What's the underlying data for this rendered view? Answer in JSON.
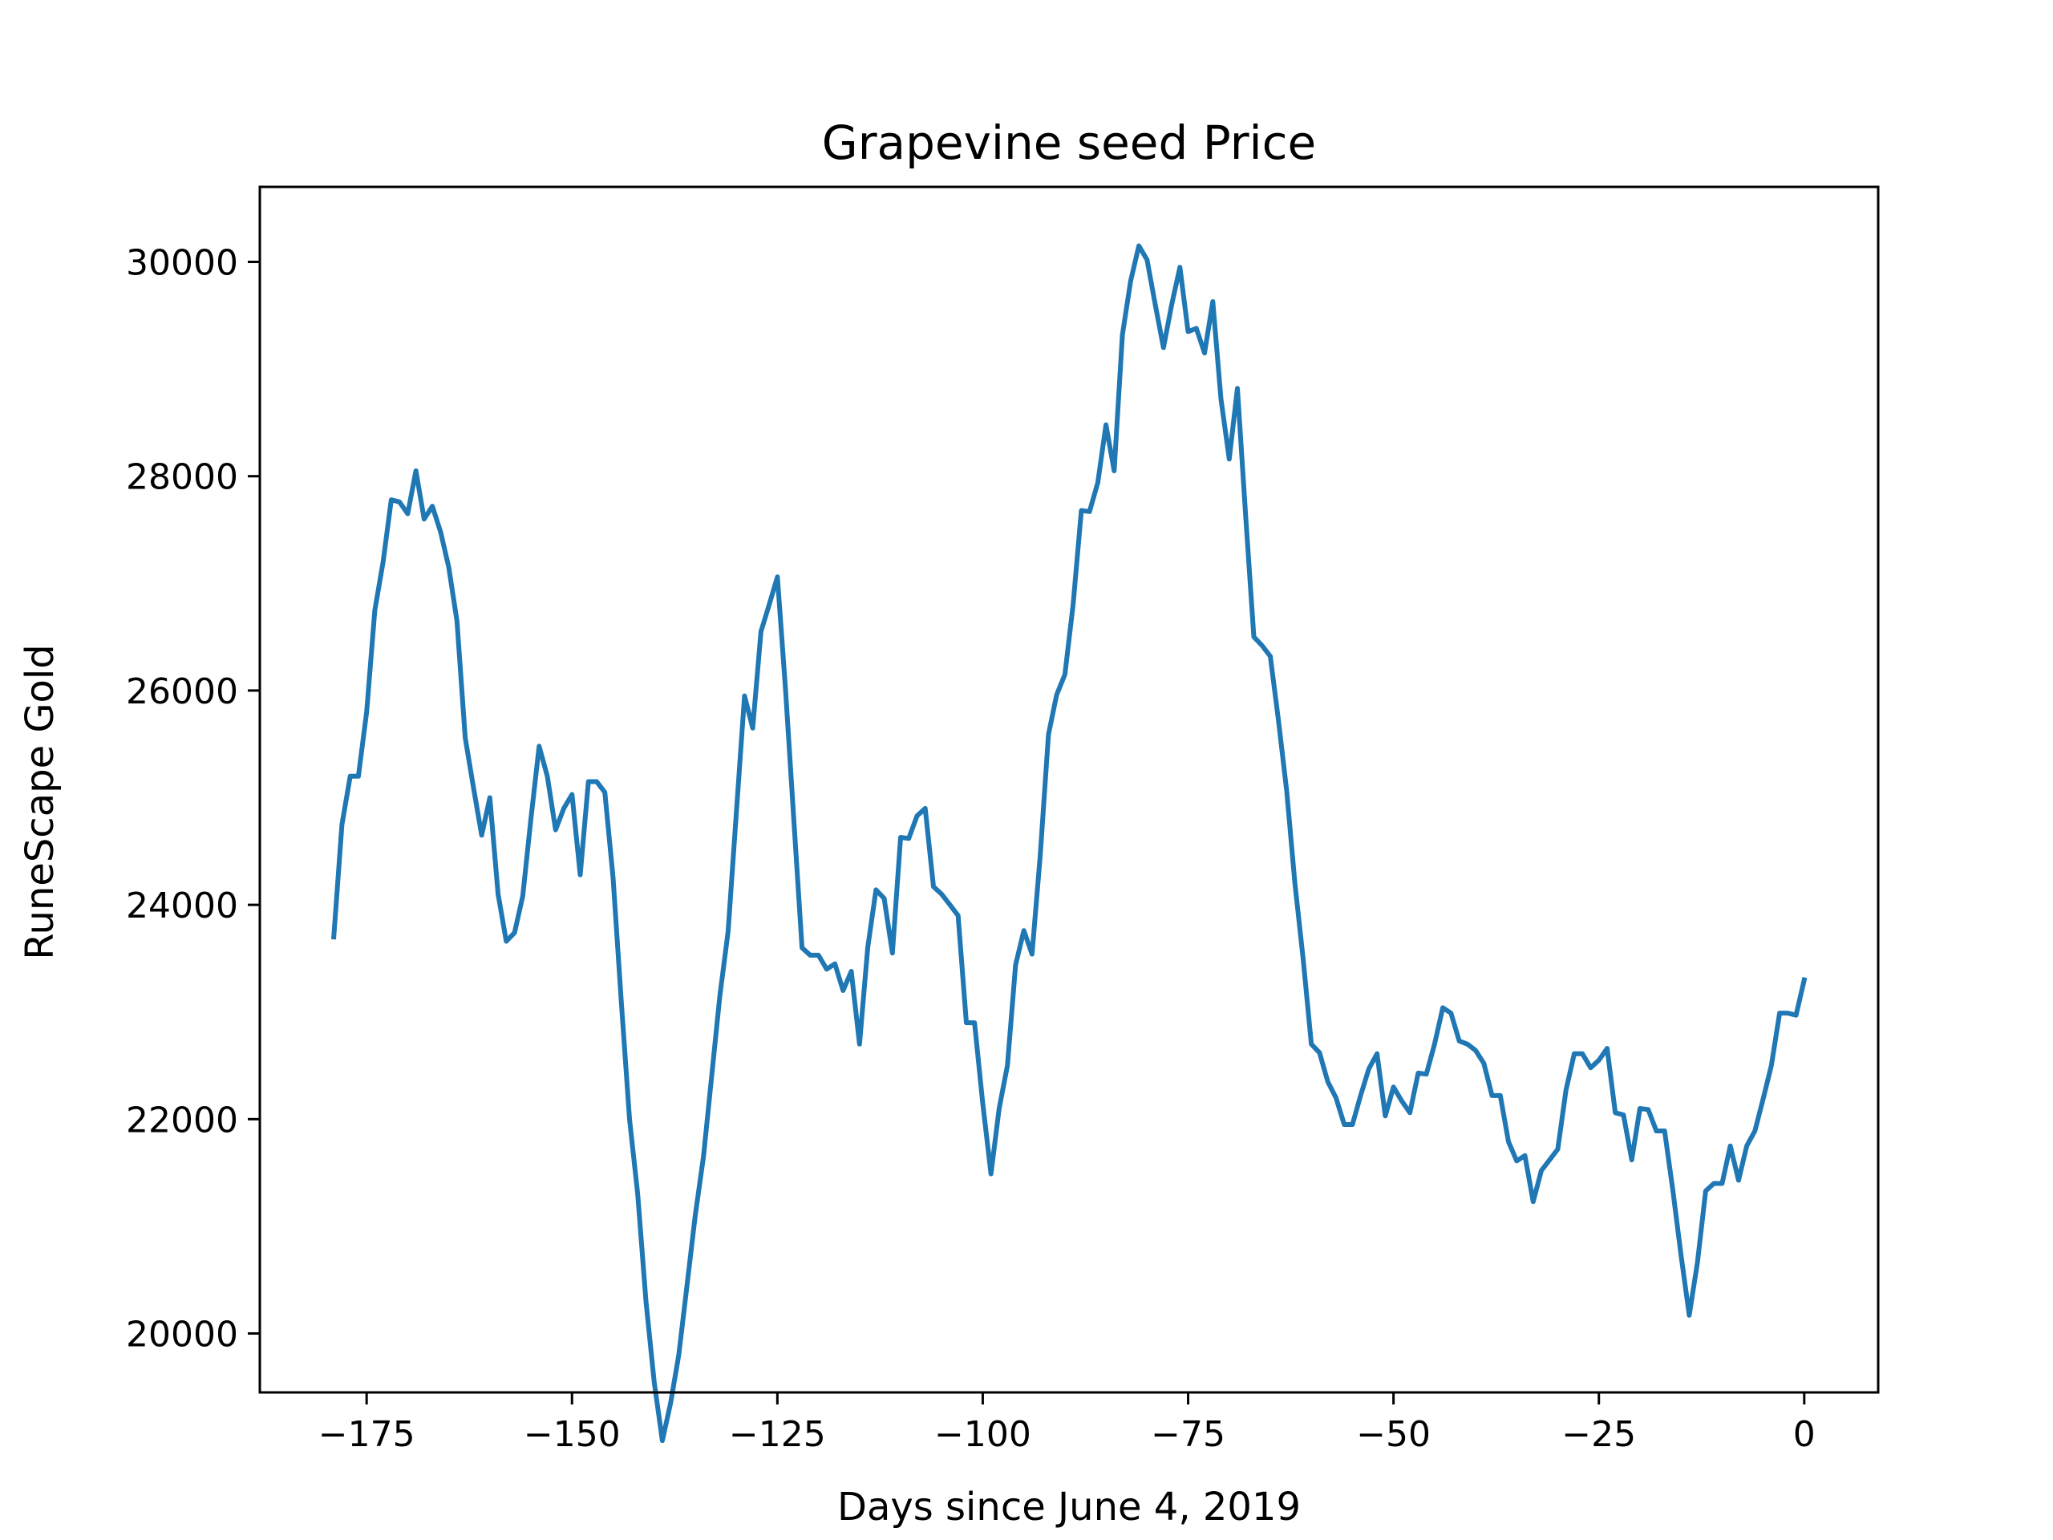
{
  "chart_data": {
    "type": "line",
    "title": "Grapevine seed Price",
    "xlabel": "Days since June 4, 2019",
    "ylabel": "RuneScape Gold",
    "xlim": [
      -188,
      9
    ],
    "ylim": [
      19450,
      30700
    ],
    "x_ticks": [
      -175,
      -150,
      -125,
      -100,
      -75,
      -50,
      -25,
      0
    ],
    "x_tick_labels": [
      "−175",
      "−150",
      "−125",
      "−100",
      "−75",
      "−50",
      "−25",
      "0"
    ],
    "y_ticks": [
      20000,
      22000,
      24000,
      26000,
      28000,
      30000
    ],
    "y_tick_labels": [
      "20000",
      "22000",
      "24000",
      "26000",
      "28000",
      "30000"
    ],
    "grid": false,
    "line_color": "#1f77b4",
    "series": [
      {
        "x": [
          -179,
          -178,
          -177,
          -176,
          -175,
          -174,
          -173,
          -172,
          -171,
          -170,
          -169,
          -168,
          -167,
          -166,
          -165,
          -164,
          -163,
          -162,
          -161,
          -160,
          -159,
          -158,
          -157,
          -156,
          -155,
          -154,
          -153,
          -152,
          -151,
          -150,
          -149,
          -148,
          -147,
          -146,
          -145,
          -144,
          -143,
          -142,
          -141,
          -140,
          -139,
          -138,
          -137,
          -136,
          -135,
          -134,
          -133,
          -132,
          -131,
          -130,
          -129,
          -128,
          -127,
          -126,
          -125,
          -124,
          -123,
          -122,
          -121,
          -120,
          -119,
          -118,
          -117,
          -116,
          -115,
          -114,
          -113,
          -112,
          -111,
          -110,
          -109,
          -108,
          -107,
          -106,
          -105,
          -104,
          -103,
          -102,
          -101,
          -100,
          -99,
          -98,
          -97,
          -96,
          -95,
          -94,
          -93,
          -92,
          -91,
          -90,
          -89,
          -88,
          -87,
          -86,
          -85,
          -84,
          -83,
          -82,
          -81,
          -80,
          -79,
          -78,
          -77,
          -76,
          -75,
          -74,
          -73,
          -72,
          -71,
          -70,
          -69,
          -68,
          -67,
          -66,
          -65,
          -64,
          -63,
          -62,
          -61,
          -60,
          -59,
          -58,
          -57,
          -56,
          -55,
          -54,
          -53,
          -52,
          -51,
          -50,
          -49,
          -48,
          -47,
          -46,
          -45,
          -44,
          -43,
          -42,
          -41,
          -40,
          -39,
          -38,
          -37,
          -36,
          -35,
          -34,
          -33,
          -32,
          -31,
          -30,
          -29,
          -28,
          -27,
          -26,
          -25,
          -24,
          -23,
          -22,
          -21,
          -20,
          -19,
          -18,
          -17,
          -16,
          -15,
          -14,
          -13,
          -12,
          -11,
          -10,
          -9,
          -8,
          -7,
          -6,
          -5,
          -4,
          -3,
          -2,
          -1,
          0
        ],
        "values": [
          23700,
          24750,
          25200,
          25200,
          25800,
          26750,
          27200,
          27780,
          27760,
          27650,
          28050,
          27600,
          27720,
          27480,
          27150,
          26650,
          25560,
          25100,
          24650,
          25000,
          24100,
          23660,
          23740,
          24080,
          24800,
          25480,
          25200,
          24700,
          24900,
          25030,
          24280,
          25150,
          25150,
          25050,
          24250,
          23100,
          22000,
          21300,
          20300,
          19550,
          19000,
          19350,
          19800,
          20450,
          21100,
          21650,
          22400,
          23150,
          23750,
          24850,
          25950,
          25650,
          26550,
          26800,
          27060,
          26000,
          24800,
          23600,
          23530,
          23530,
          23400,
          23450,
          23200,
          23380,
          22700,
          23600,
          24140,
          24060,
          23550,
          24630,
          24620,
          24830,
          24900,
          24170,
          24100,
          24000,
          23900,
          22900,
          22900,
          22150,
          21490,
          22100,
          22500,
          23440,
          23760,
          23540,
          24460,
          25590,
          25960,
          26150,
          26800,
          27680,
          27670,
          27940,
          28480,
          28050,
          29320,
          29820,
          30150,
          30020,
          29600,
          29200,
          29600,
          29950,
          29350,
          29380,
          29150,
          29630,
          28720,
          28160,
          28820,
          27640,
          26500,
          26420,
          26320,
          25720,
          25060,
          24200,
          23500,
          22700,
          22620,
          22350,
          22200,
          21950,
          21950,
          22220,
          22470,
          22610,
          22030,
          22300,
          22170,
          22060,
          22430,
          22420,
          22700,
          23040,
          22990,
          22730,
          22700,
          22640,
          22520,
          22220,
          22220,
          21790,
          21610,
          21660,
          21230,
          21520,
          21620,
          21720,
          22270,
          22610,
          22610,
          22480,
          22550,
          22660,
          22060,
          22040,
          21620,
          22100,
          22090,
          21890,
          21890,
          21340,
          20730,
          20170,
          20660,
          21330,
          21400,
          21400,
          21750,
          21430,
          21750,
          21890,
          22190,
          22500,
          22990,
          22990,
          22970,
          23300
        ]
      }
    ]
  }
}
